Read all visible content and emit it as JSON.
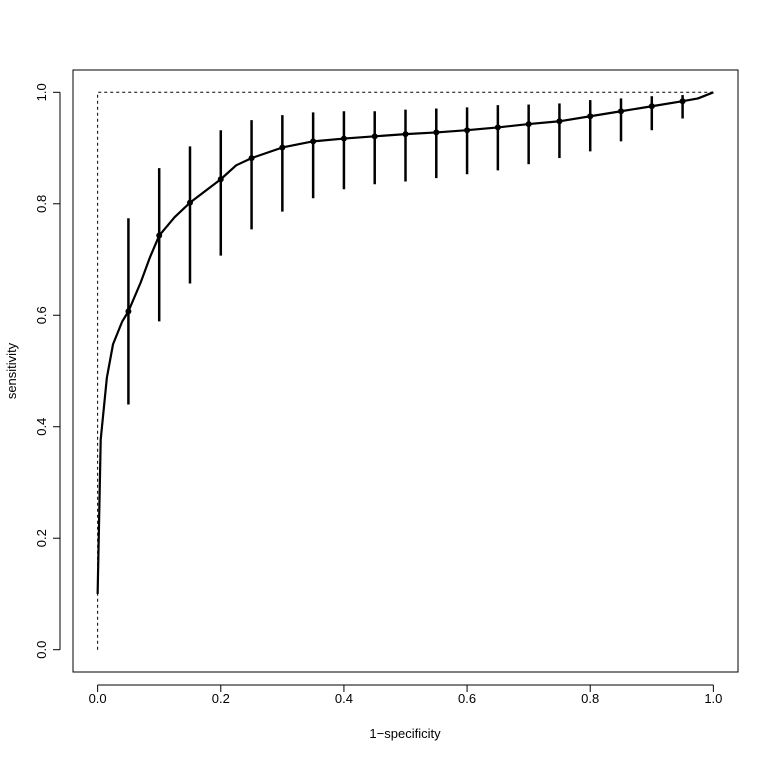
{
  "chart_data": {
    "type": "line",
    "xlabel": "1−specificity",
    "ylabel": "sensitivity",
    "xlim": [
      -0.04,
      1.04
    ],
    "ylim": [
      -0.04,
      1.04
    ],
    "xticks": [
      {
        "value": 0,
        "label": "0.0"
      },
      0.2,
      0.4,
      0.6,
      0.8,
      {
        "value": 1,
        "label": "1.0"
      }
    ],
    "yticks": [
      {
        "value": 0,
        "label": "0.0"
      },
      0.2,
      0.4,
      0.6,
      0.8,
      {
        "value": 1,
        "label": "1.0"
      }
    ],
    "color": "#000000",
    "reference": {
      "x": [
        0,
        0,
        1
      ],
      "values": [
        0,
        1,
        1
      ]
    },
    "curve": {
      "x": [
        0,
        0.005,
        0.015,
        0.025,
        0.04,
        0.05,
        0.07,
        0.085,
        0.1,
        0.125,
        0.15,
        0.2,
        0.225,
        0.25,
        0.3,
        0.35,
        0.4,
        0.45,
        0.5,
        0.55,
        0.6,
        0.65,
        0.7,
        0.75,
        0.8,
        0.85,
        0.9,
        0.95,
        0.975,
        1
      ],
      "values": [
        0.1,
        0.377,
        0.488,
        0.548,
        0.589,
        0.607,
        0.659,
        0.704,
        0.743,
        0.776,
        0.802,
        0.844,
        0.869,
        0.882,
        0.901,
        0.912,
        0.917,
        0.921,
        0.925,
        0.928,
        0.932,
        0.937,
        0.943,
        0.948,
        0.957,
        0.966,
        0.975,
        0.984,
        0.989,
        1.0
      ]
    },
    "points": {
      "x": [
        0.05,
        0.1,
        0.15,
        0.2,
        0.25,
        0.3,
        0.35,
        0.4,
        0.45,
        0.5,
        0.55,
        0.6,
        0.65,
        0.7,
        0.75,
        0.8,
        0.85,
        0.9,
        0.95
      ],
      "values": [
        0.607,
        0.743,
        0.802,
        0.844,
        0.882,
        0.901,
        0.912,
        0.917,
        0.921,
        0.925,
        0.928,
        0.932,
        0.937,
        0.943,
        0.948,
        0.957,
        0.966,
        0.975,
        0.984
      ],
      "lower": [
        0.44,
        0.589,
        0.657,
        0.707,
        0.754,
        0.786,
        0.81,
        0.826,
        0.835,
        0.84,
        0.846,
        0.853,
        0.86,
        0.871,
        0.882,
        0.894,
        0.912,
        0.932,
        0.953
      ],
      "upper": [
        0.774,
        0.864,
        0.903,
        0.932,
        0.95,
        0.959,
        0.964,
        0.966,
        0.966,
        0.969,
        0.971,
        0.973,
        0.977,
        0.978,
        0.98,
        0.986,
        0.989,
        0.993,
        0.995
      ]
    }
  }
}
